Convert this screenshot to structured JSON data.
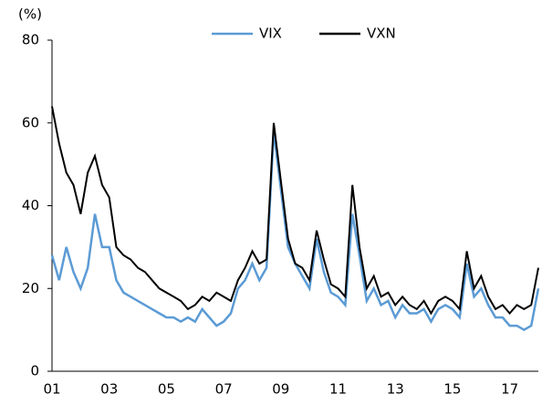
{
  "chart_data": {
    "type": "line",
    "unit_label": "(%)",
    "categories": [
      "01",
      null,
      null,
      null,
      null,
      null,
      null,
      null,
      "03",
      null,
      null,
      null,
      null,
      null,
      null,
      null,
      "05",
      null,
      null,
      null,
      null,
      null,
      null,
      null,
      "07",
      null,
      null,
      null,
      null,
      null,
      null,
      null,
      "09",
      null,
      null,
      null,
      null,
      null,
      null,
      null,
      "11",
      null,
      null,
      null,
      null,
      null,
      null,
      null,
      "13",
      null,
      null,
      null,
      null,
      null,
      null,
      null,
      "15",
      null,
      null,
      null,
      null,
      null,
      null,
      null,
      "17",
      null,
      null,
      null,
      null
    ],
    "series": [
      {
        "name": "VIX",
        "color": "#5b9bd5",
        "values": [
          28,
          22,
          30,
          24,
          20,
          25,
          38,
          30,
          30,
          22,
          19,
          18,
          17,
          16,
          15,
          14,
          13,
          13,
          12,
          13,
          12,
          15,
          13,
          11,
          12,
          14,
          20,
          22,
          26,
          22,
          25,
          58,
          44,
          30,
          26,
          23,
          20,
          32,
          24,
          19,
          18,
          16,
          38,
          28,
          17,
          20,
          16,
          17,
          13,
          16,
          14,
          14,
          15,
          12,
          15,
          16,
          15,
          13,
          26,
          18,
          20,
          16,
          13,
          13,
          11,
          11,
          10,
          11,
          20
        ]
      },
      {
        "name": "VXN",
        "color": "#000000",
        "values": [
          64,
          55,
          48,
          45,
          38,
          48,
          52,
          45,
          42,
          30,
          28,
          27,
          25,
          24,
          22,
          20,
          19,
          18,
          17,
          15,
          16,
          18,
          17,
          19,
          18,
          17,
          22,
          25,
          29,
          26,
          27,
          60,
          46,
          32,
          26,
          25,
          22,
          34,
          27,
          21,
          20,
          18,
          45,
          30,
          20,
          23,
          18,
          19,
          16,
          18,
          16,
          15,
          17,
          14,
          17,
          18,
          17,
          15,
          29,
          20,
          23,
          18,
          15,
          16,
          14,
          16,
          15,
          16,
          25
        ]
      }
    ],
    "ylim": [
      0,
      80
    ],
    "yticks": [
      0,
      20,
      40,
      60,
      80
    ],
    "grid": false,
    "legend": "top"
  }
}
